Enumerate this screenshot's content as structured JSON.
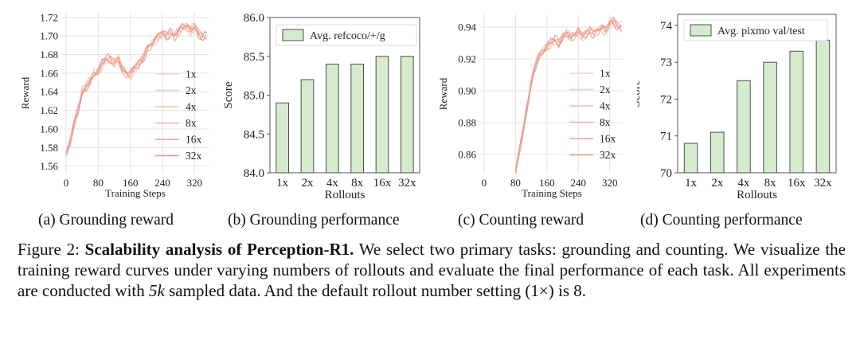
{
  "chart_data": [
    {
      "id": "a",
      "type": "line",
      "xlabel": "Training Steps",
      "ylabel": "Reward",
      "xticks": [
        0,
        80,
        160,
        240,
        320
      ],
      "yticks": [
        1.56,
        1.58,
        1.6,
        1.62,
        1.64,
        1.66,
        1.68,
        1.7,
        1.72
      ],
      "xlim": [
        -10,
        355
      ],
      "ylim": [
        1.552,
        1.725
      ],
      "legend": [
        "1x",
        "2x",
        "4x",
        "8x",
        "16x",
        "32x"
      ],
      "legend_position": "right",
      "base_curve": [
        [
          0,
          1.575
        ],
        [
          10,
          1.585
        ],
        [
          20,
          1.605
        ],
        [
          30,
          1.62
        ],
        [
          40,
          1.64
        ],
        [
          50,
          1.645
        ],
        [
          60,
          1.652
        ],
        [
          70,
          1.66
        ],
        [
          80,
          1.662
        ],
        [
          90,
          1.67
        ],
        [
          100,
          1.675
        ],
        [
          110,
          1.675
        ],
        [
          120,
          1.672
        ],
        [
          130,
          1.675
        ],
        [
          140,
          1.665
        ],
        [
          150,
          1.66
        ],
        [
          160,
          1.658
        ],
        [
          170,
          1.665
        ],
        [
          180,
          1.67
        ],
        [
          190,
          1.675
        ],
        [
          200,
          1.685
        ],
        [
          210,
          1.69
        ],
        [
          220,
          1.695
        ],
        [
          230,
          1.7
        ],
        [
          240,
          1.702
        ],
        [
          250,
          1.7
        ],
        [
          260,
          1.705
        ],
        [
          270,
          1.7
        ],
        [
          280,
          1.705
        ],
        [
          290,
          1.71
        ],
        [
          300,
          1.71
        ],
        [
          310,
          1.705
        ],
        [
          320,
          1.71
        ],
        [
          330,
          1.703
        ],
        [
          340,
          1.7
        ],
        [
          350,
          1.7
        ]
      ]
    },
    {
      "id": "b",
      "type": "bar",
      "categories": [
        "1x",
        "2x",
        "4x",
        "8x",
        "16x",
        "32x"
      ],
      "values": [
        84.9,
        85.2,
        85.4,
        85.4,
        85.5,
        85.5
      ],
      "xlabel": "Rollouts",
      "ylabel": "Score",
      "yticks": [
        84.0,
        84.5,
        85.0,
        85.5,
        86.0
      ],
      "ylim": [
        84.0,
        86.0
      ],
      "legend": "Avg. refcoco/+/g",
      "legend_position": "top"
    },
    {
      "id": "c",
      "type": "line",
      "xlabel": "Training Steps",
      "ylabel": "Reward",
      "xticks": [
        0,
        80,
        160,
        240,
        320
      ],
      "yticks": [
        0.86,
        0.88,
        0.9,
        0.92,
        0.94
      ],
      "xlim": [
        -10,
        355
      ],
      "ylim": [
        0.848,
        0.948
      ],
      "legend": [
        "1x",
        "2x",
        "4x",
        "8x",
        "16x",
        "32x"
      ],
      "legend_position": "right",
      "base_curve": [
        [
          80,
          0.85
        ],
        [
          90,
          0.862
        ],
        [
          100,
          0.875
        ],
        [
          110,
          0.89
        ],
        [
          120,
          0.905
        ],
        [
          130,
          0.915
        ],
        [
          140,
          0.922
        ],
        [
          150,
          0.925
        ],
        [
          160,
          0.928
        ],
        [
          170,
          0.93
        ],
        [
          180,
          0.932
        ],
        [
          190,
          0.93
        ],
        [
          200,
          0.934
        ],
        [
          210,
          0.936
        ],
        [
          220,
          0.934
        ],
        [
          230,
          0.935
        ],
        [
          240,
          0.937
        ],
        [
          250,
          0.934
        ],
        [
          260,
          0.936
        ],
        [
          270,
          0.938
        ],
        [
          280,
          0.936
        ],
        [
          290,
          0.938
        ],
        [
          300,
          0.94
        ],
        [
          310,
          0.938
        ],
        [
          320,
          0.942
        ],
        [
          330,
          0.944
        ],
        [
          340,
          0.941
        ],
        [
          350,
          0.94
        ]
      ]
    },
    {
      "id": "d",
      "type": "bar",
      "categories": [
        "1x",
        "2x",
        "4x",
        "8x",
        "16x",
        "32x"
      ],
      "values": [
        70.8,
        71.1,
        72.5,
        73.0,
        73.3,
        73.6
      ],
      "xlabel": "Rollouts",
      "ylabel": "Score",
      "yticks": [
        70,
        71,
        72,
        73,
        74
      ],
      "ylim": [
        70,
        74.3
      ],
      "legend": "Avg. pixmo val/test",
      "legend_position": "top"
    }
  ],
  "subcaptions": {
    "a": "(a) Grounding reward",
    "b": "(b) Grounding performance",
    "c": "(c) Counting reward",
    "d": "(d) Counting performance"
  },
  "caption": {
    "prefix": "Figure 2: ",
    "bold": "Scalability analysis of Perception-R1.",
    "body1": " We select two primary tasks: grounding and counting. We visualize the training reward curves under varying numbers of rollouts and evaluate the final performance of each task. All experiments are conducted with ",
    "math": "5k",
    "body2": " sampled data. And the default rollout number setting (1×) is 8."
  },
  "colors": {
    "bar_fill": "#d4ebcd",
    "bar_stroke": "#4f4f4f",
    "line_colors": [
      "#f6d2c6",
      "#f3c9bb",
      "#f1bfb0",
      "#eeb3a4",
      "#eba497",
      "#e8958a"
    ]
  }
}
